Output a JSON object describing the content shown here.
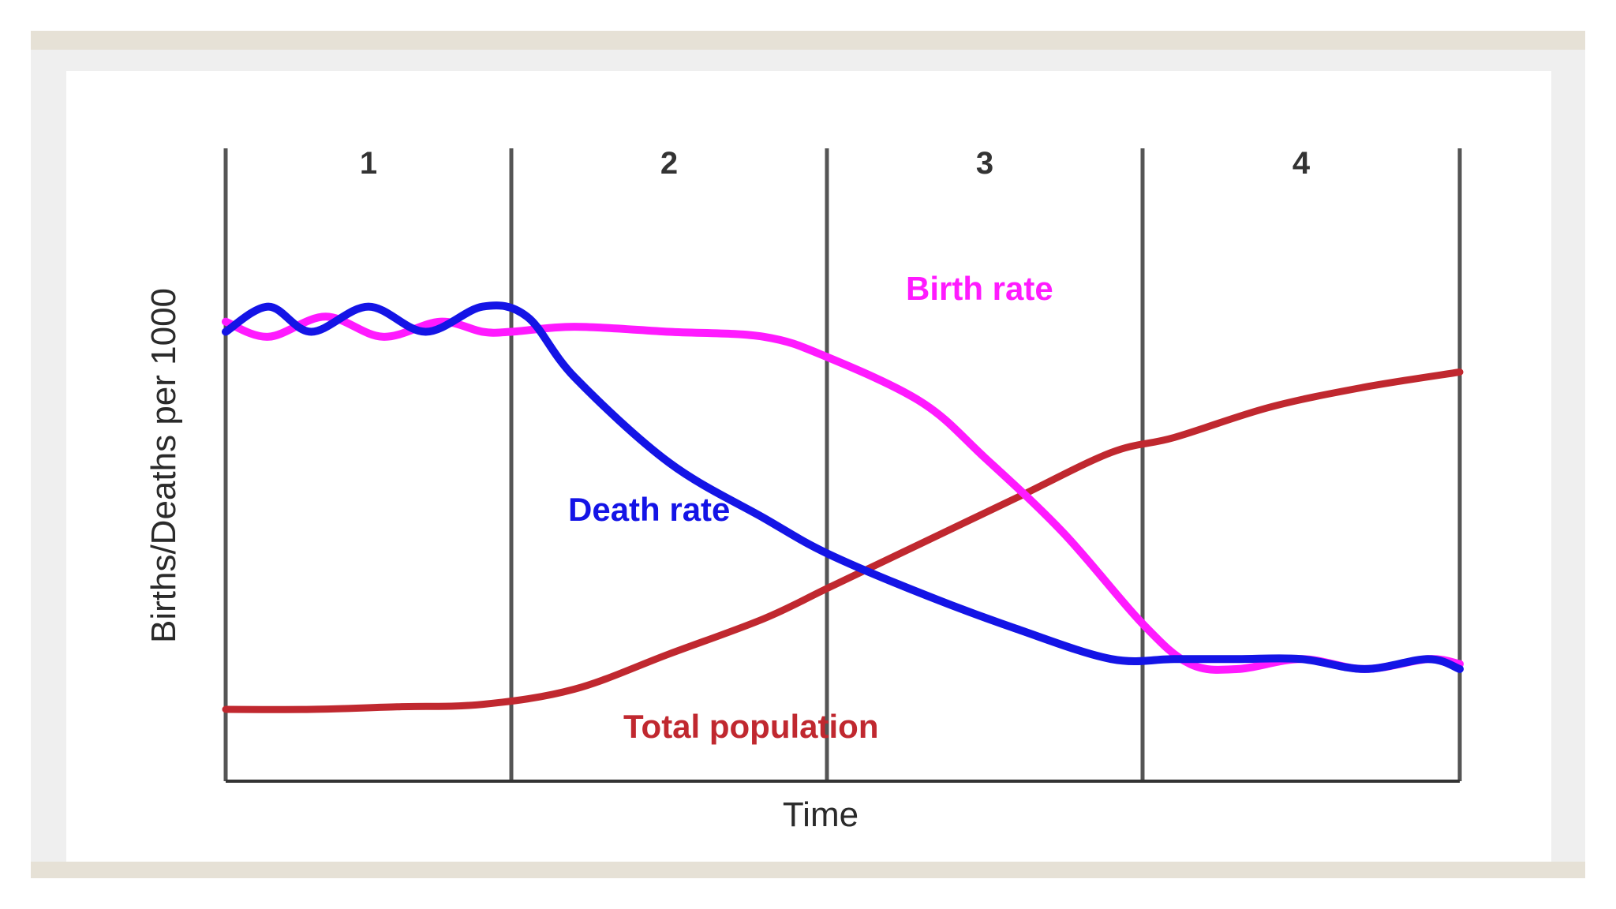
{
  "chart_data": {
    "type": "line",
    "title": "",
    "xlabel": "Time",
    "ylabel": "Births/Deaths per 1000",
    "phases": [
      "1",
      "2",
      "3",
      "4"
    ],
    "xlim": [
      0,
      4
    ],
    "ylim": [
      0,
      1
    ],
    "grid": false,
    "series": [
      {
        "name": "Birth rate",
        "color": "#ff1aff",
        "x": [
          0,
          0.15,
          0.35,
          0.55,
          0.75,
          0.9,
          1.0,
          1.2,
          1.5,
          1.8,
          2.0,
          2.3,
          2.5,
          2.75,
          3.0,
          3.15,
          3.3,
          3.5,
          3.7,
          3.9,
          4.0
        ],
        "values": [
          0.85,
          0.82,
          0.86,
          0.82,
          0.85,
          0.83,
          0.83,
          0.84,
          0.83,
          0.82,
          0.78,
          0.69,
          0.58,
          0.43,
          0.25,
          0.17,
          0.16,
          0.18,
          0.16,
          0.18,
          0.17
        ]
      },
      {
        "name": "Death rate",
        "color": "#1414e6",
        "x": [
          0,
          0.15,
          0.3,
          0.5,
          0.7,
          0.9,
          1.05,
          1.2,
          1.5,
          1.8,
          2.0,
          2.3,
          2.6,
          2.9,
          3.1,
          3.3,
          3.5,
          3.7,
          3.9,
          4.0
        ],
        "values": [
          0.83,
          0.88,
          0.83,
          0.88,
          0.83,
          0.88,
          0.86,
          0.74,
          0.57,
          0.46,
          0.39,
          0.31,
          0.24,
          0.18,
          0.18,
          0.18,
          0.18,
          0.16,
          0.18,
          0.16
        ]
      },
      {
        "name": "Total population",
        "color": "#c0282f",
        "x": [
          0,
          0.3,
          0.6,
          0.9,
          1.2,
          1.5,
          1.8,
          2.0,
          2.3,
          2.6,
          2.9,
          3.1,
          3.4,
          3.7,
          4.0
        ],
        "values": [
          0.08,
          0.08,
          0.085,
          0.09,
          0.12,
          0.19,
          0.26,
          0.32,
          0.41,
          0.5,
          0.59,
          0.62,
          0.68,
          0.72,
          0.75
        ]
      }
    ]
  }
}
